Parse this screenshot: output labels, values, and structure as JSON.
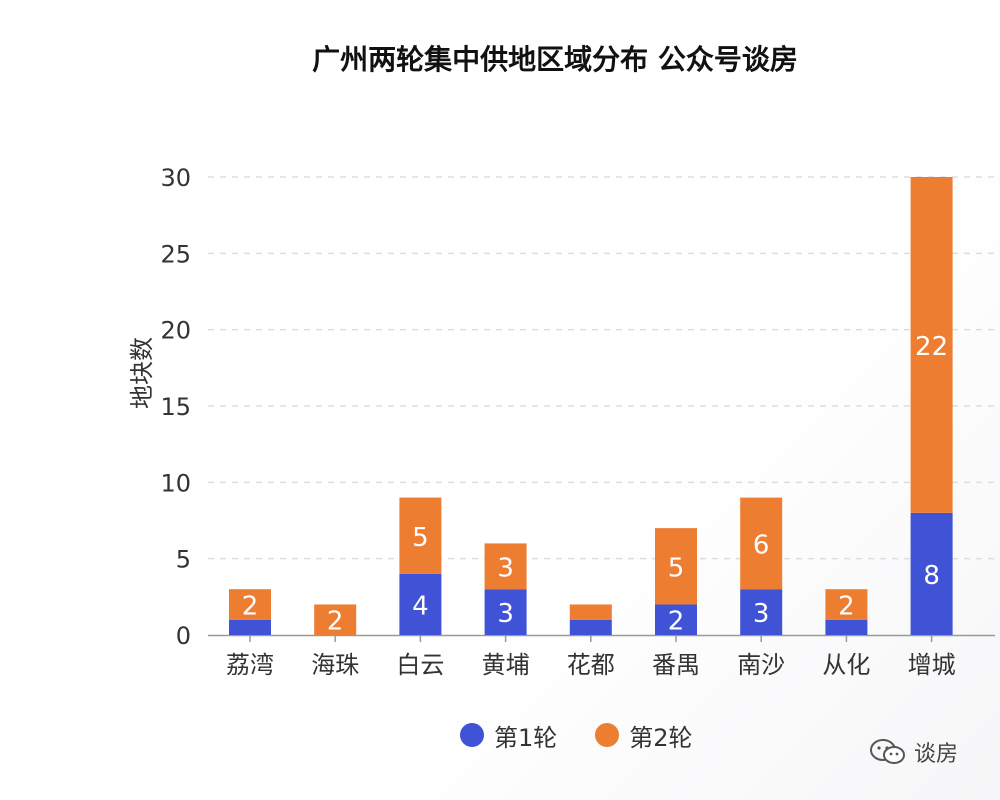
{
  "chart_data": {
    "type": "bar",
    "stacked": true,
    "title": "广州两轮集中供地区域分布 公众号谈房",
    "ylabel": "地块数",
    "xlabel": "",
    "categories": [
      "荔湾",
      "海珠",
      "白云",
      "黄埔",
      "花都",
      "番禺",
      "南沙",
      "从化",
      "增城"
    ],
    "series": [
      {
        "name": "第1轮",
        "color": "#4052D6",
        "values": [
          1,
          0,
          4,
          3,
          1,
          2,
          3,
          1,
          8
        ],
        "labels": [
          "",
          "",
          "4",
          "3",
          "",
          "2",
          "3",
          "",
          "8"
        ]
      },
      {
        "name": "第2轮",
        "color": "#ED7D31",
        "values": [
          2,
          2,
          5,
          3,
          1,
          5,
          6,
          2,
          22
        ],
        "labels": [
          "2",
          "2",
          "5",
          "3",
          "",
          "5",
          "6",
          "2",
          "22"
        ]
      }
    ],
    "ylim": [
      0,
      30
    ],
    "yticks": [
      0,
      5,
      10,
      15,
      20,
      25,
      30
    ],
    "grid": true,
    "legend_position": "bottom"
  },
  "watermark": {
    "text": "谈房",
    "icon": "wechat-icon"
  }
}
